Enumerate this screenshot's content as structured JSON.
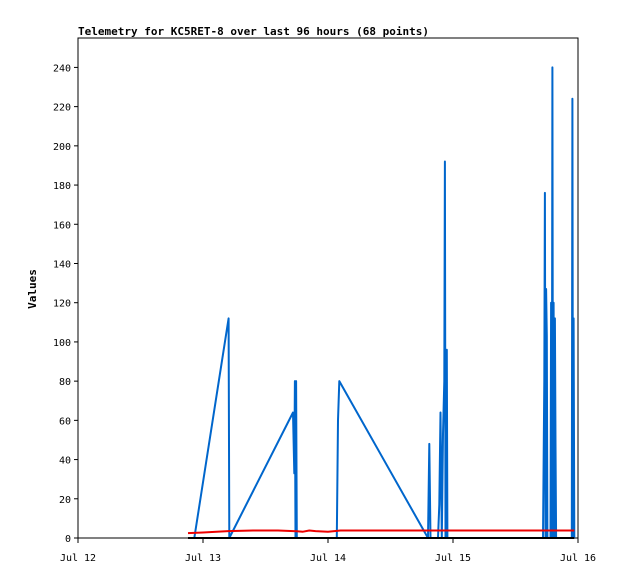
{
  "chart_data": {
    "type": "line",
    "title": "Telemetry for KC5RET-8 over last 96 hours (68 points)",
    "xlabel": "",
    "ylabel": "Values",
    "x_ticks": [
      "Jul 12",
      "Jul 13",
      "Jul 14",
      "Jul 15",
      "Jul 16"
    ],
    "y_ticks": [
      "0",
      "20",
      "40",
      "60",
      "80",
      "100",
      "120",
      "140",
      "160",
      "180",
      "200",
      "220",
      "240"
    ],
    "xlim": [
      0,
      4
    ],
    "ylim": [
      0,
      255
    ],
    "x_unit_note": "days after Jul 12 00:00",
    "grid": false,
    "legend": "none",
    "series": [
      {
        "color": "#0066cc",
        "points": [
          [
            0.93,
            0
          ],
          [
            1.205,
            112
          ],
          [
            1.21,
            0
          ],
          [
            1.72,
            64
          ],
          [
            1.73,
            33
          ],
          [
            1.735,
            80
          ],
          [
            1.74,
            0
          ],
          [
            1.745,
            80
          ],
          [
            1.75,
            0
          ],
          [
            2.07,
            0
          ],
          [
            2.08,
            60
          ],
          [
            2.09,
            80
          ],
          [
            2.8,
            0
          ],
          [
            2.81,
            48
          ],
          [
            2.82,
            0
          ],
          [
            2.88,
            0
          ],
          [
            2.89,
            17
          ],
          [
            2.9,
            64
          ],
          [
            2.91,
            0
          ],
          [
            2.92,
            53
          ],
          [
            2.93,
            80
          ],
          [
            2.935,
            192
          ],
          [
            2.94,
            0
          ],
          [
            2.95,
            96
          ],
          [
            2.955,
            0
          ],
          [
            3.72,
            0
          ],
          [
            3.73,
            80
          ],
          [
            3.735,
            176
          ],
          [
            3.74,
            0
          ],
          [
            3.745,
            127
          ],
          [
            3.75,
            103
          ],
          [
            3.755,
            0
          ],
          [
            3.78,
            0
          ],
          [
            3.785,
            120
          ],
          [
            3.79,
            0
          ],
          [
            3.795,
            240
          ],
          [
            3.8,
            0
          ],
          [
            3.805,
            120
          ],
          [
            3.81,
            0
          ],
          [
            3.815,
            112
          ],
          [
            3.82,
            48
          ],
          [
            3.825,
            0
          ],
          [
            3.95,
            0
          ],
          [
            3.955,
            224
          ],
          [
            3.96,
            0
          ],
          [
            3.965,
            112
          ],
          [
            3.97,
            0
          ]
        ]
      },
      {
        "color": "#ee0000",
        "points": [
          [
            0.88,
            2.5
          ],
          [
            1.0,
            2.8
          ],
          [
            1.2,
            3.5
          ],
          [
            1.4,
            3.8
          ],
          [
            1.6,
            3.8
          ],
          [
            1.75,
            3.4
          ],
          [
            1.8,
            3.2
          ],
          [
            1.85,
            3.8
          ],
          [
            1.9,
            3.5
          ],
          [
            2.0,
            3.2
          ],
          [
            2.1,
            3.8
          ],
          [
            2.4,
            3.8
          ],
          [
            2.8,
            3.8
          ],
          [
            3.0,
            3.8
          ],
          [
            3.5,
            3.8
          ],
          [
            3.97,
            3.8
          ]
        ]
      },
      {
        "color": "#000000",
        "points": [
          [
            0.88,
            0
          ],
          [
            3.97,
            0
          ]
        ]
      }
    ]
  }
}
